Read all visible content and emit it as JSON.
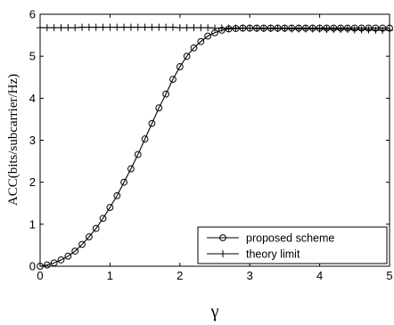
{
  "chart_data": {
    "type": "line",
    "title": "",
    "xlabel": "γ",
    "ylabel": "ACC(bits/subcarrier/Hz)",
    "xlim": [
      0,
      5
    ],
    "ylim": [
      0,
      6
    ],
    "x_ticks": [
      0,
      1,
      2,
      3,
      4,
      5
    ],
    "y_ticks": [
      0,
      1,
      2,
      3,
      4,
      5,
      6
    ],
    "grid": false,
    "legend_position": "bottom-right",
    "x": [
      0.0,
      0.1,
      0.2,
      0.3,
      0.4,
      0.5,
      0.6,
      0.7,
      0.8,
      0.9,
      1.0,
      1.1,
      1.2,
      1.3,
      1.4,
      1.5,
      1.6,
      1.7,
      1.8,
      1.9,
      2.0,
      2.1,
      2.2,
      2.3,
      2.4,
      2.5,
      2.6,
      2.7,
      2.8,
      2.9,
      3.0,
      3.1,
      3.2,
      3.3,
      3.4,
      3.5,
      3.6,
      3.7,
      3.8,
      3.9,
      4.0,
      4.1,
      4.2,
      4.3,
      4.4,
      4.5,
      4.6,
      4.7,
      4.8,
      4.9,
      5.0
    ],
    "series": [
      {
        "name": "proposed scheme",
        "marker": "circle",
        "color": "#000000",
        "values": [
          0.0,
          0.03,
          0.08,
          0.15,
          0.24,
          0.36,
          0.52,
          0.7,
          0.9,
          1.14,
          1.4,
          1.68,
          2.0,
          2.32,
          2.66,
          3.03,
          3.4,
          3.77,
          4.1,
          4.45,
          4.75,
          5.0,
          5.2,
          5.35,
          5.48,
          5.56,
          5.62,
          5.65,
          5.66,
          5.67,
          5.67,
          5.67,
          5.67,
          5.67,
          5.67,
          5.67,
          5.67,
          5.67,
          5.67,
          5.67,
          5.67,
          5.67,
          5.67,
          5.67,
          5.67,
          5.67,
          5.67,
          5.67,
          5.67,
          5.67,
          5.67
        ]
      },
      {
        "name": "theory limit",
        "marker": "plus",
        "color": "#000000",
        "values": [
          5.68,
          5.68,
          5.68,
          5.68,
          5.68,
          5.68,
          5.69,
          5.69,
          5.69,
          5.69,
          5.69,
          5.69,
          5.69,
          5.69,
          5.69,
          5.69,
          5.69,
          5.69,
          5.69,
          5.69,
          5.68,
          5.68,
          5.68,
          5.68,
          5.68,
          5.67,
          5.67,
          5.67,
          5.67,
          5.67,
          5.67,
          5.66,
          5.66,
          5.66,
          5.66,
          5.66,
          5.65,
          5.65,
          5.65,
          5.65,
          5.65,
          5.64,
          5.64,
          5.64,
          5.64,
          5.63,
          5.63,
          5.63,
          5.62,
          5.62,
          5.62
        ]
      }
    ]
  }
}
